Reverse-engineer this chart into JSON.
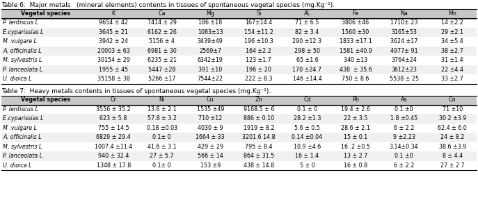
{
  "table6_title": "Table 6:  Major metals   (mineral elements) contents in tissues of spontaneous vegetal species (mg.Kg⁻¹).",
  "table6_headers": [
    "Vegetal species",
    "K",
    "Ca",
    "Mg",
    "Si",
    "AL",
    "Fe",
    "Na",
    "Mn"
  ],
  "table6_rows": [
    [
      "P. lentiscus L",
      "9654 ± 42",
      "7414 ± 29",
      "186 ±18",
      "167±14.4",
      "71 ± 6.5",
      "3806 ±46",
      "1710± 23",
      "14 ±2.2"
    ],
    [
      "E.cyparissias L",
      "3645 ± 21",
      "6162 ± 26",
      "1083±13",
      "154 ±11.2",
      "82 ± 3.4",
      "1560 ±30",
      "3165±53",
      "29 ±2.1"
    ],
    [
      "M .vulgare L",
      "3942 ± 24",
      "5156 ± 4",
      "3439±49",
      "196 ±10.3",
      "290 ±12.3",
      "1833 ±17.1",
      "3624 ±17",
      "34 ±5.4"
    ],
    [
      "A. officinalis L",
      "20003 ± 63",
      "6981 ± 30",
      "2569±7",
      "164 ±2.2",
      "298 ± 50",
      "1581 ±40.9",
      "4977± 91",
      "38 ±2.7"
    ],
    [
      "M. sylvestris L",
      "30154 ± 29",
      "6235 ± 21",
      "6342±19",
      "123 ±1.7",
      "65 ±1.6",
      "340 ±13",
      "3764±24",
      "31 ±1.4"
    ],
    [
      "P. lanceolata L",
      "1955 ± 45",
      "5447 ±28",
      "391 ±10",
      "196 ± 20",
      "170 ±24.7",
      "438  ± 35.6",
      "3612±23",
      "22 ±4.4"
    ],
    [
      "U. dioica L",
      "35158 ± 38",
      "5266 ±17",
      "7544±22",
      "222 ± 8.3",
      "146 ±14.4",
      "750 ± 8.6",
      "5538 ± 25",
      "33 ±2.7"
    ]
  ],
  "table7_title": "Table 7:  Heavy metals contents in tissues of spontaneous vegetal species (mg.Kg⁻¹).",
  "table7_headers": [
    "Vegetal species",
    "Cr",
    "Ni",
    "Cu",
    "Zn",
    "Cd",
    "Pb",
    "As",
    "Co"
  ],
  "table7_rows": [
    [
      "P. lentiscus L",
      "3556 ± 35.2",
      "13.6 ± 2.1",
      "1535 ±49",
      "9168.5 ± 6",
      "0.1 ± 0",
      "19.4 ± 2.6",
      "0.1 ±0",
      "71 ±10"
    ],
    [
      "E.cyparissias L",
      "623 ± 5.8",
      "57.8 ± 3.2",
      "710 ±12",
      "886 ± 0.10",
      "28.2 ±1.3",
      "22 ± 3.5",
      "1.8 ±0.45",
      "30.2 ±3.9"
    ],
    [
      "M .vulgare L",
      "755 ± 14.5",
      "0.18 ±0.03",
      "4030 ± 9",
      "1919 ± 8.2",
      "5.6 ± 0.5",
      "28.6 ± 2.1",
      "6 ± 2.2",
      "62.4 ± 6.0"
    ],
    [
      "A. officinalis L",
      "6829 ± 29.4",
      "0.1± 0",
      "1664 ± 33",
      "3201.6 14.8",
      "0.14 ±0.04",
      "15 ± 0.1",
      "9 ±2.23",
      "24 ± 8.2"
    ],
    [
      "M. sylvestris L",
      "1007.4 ±11.4",
      "41.6 ± 3.1",
      "429 ± 29",
      "795 ± 8.4",
      "10.9 ±4.6",
      "16 .2 ±0.5",
      "3.14±0.34",
      "38.6 ±3.9"
    ],
    [
      "P. lanceolata L",
      "940 ± 32.4",
      "27 ± 5.7",
      "566 ± 14",
      "864 ± 31.5",
      "16 ± 1.4",
      "13 ± 2.7",
      "0.1 ±0",
      "8 ± 4.4"
    ],
    [
      "U. dioica L",
      "1348 ± 17.8",
      "0.1± 0",
      "153 ±9",
      "438 ± 14.8",
      "5 ± 0",
      "16 ± 0.8",
      "6 ± 2.2",
      "27 ± 2.7"
    ]
  ],
  "bg_color": "#ffffff",
  "header_bg": "#c8c8c8",
  "border_color": "#000000",
  "text_color": "#000000",
  "fontsize": 5.8,
  "title_fontsize": 6.5
}
